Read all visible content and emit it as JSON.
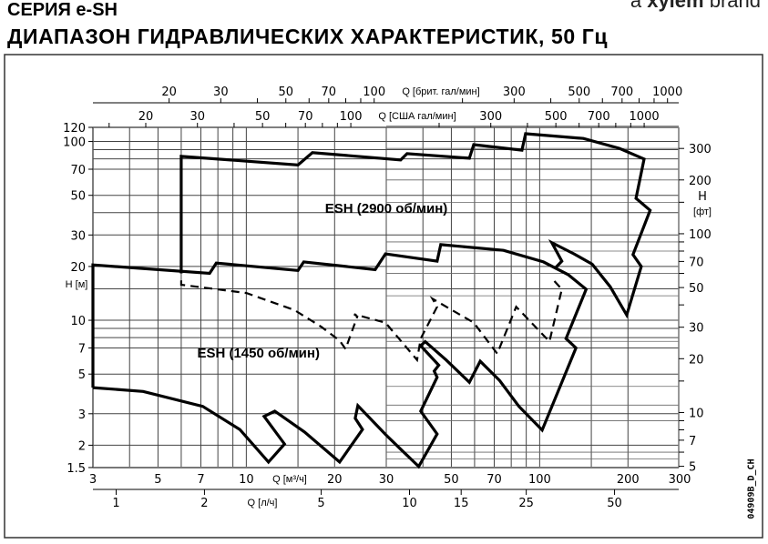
{
  "header": {
    "series_title": "СЕРИЯ e-SH",
    "title": "ДИАПАЗОН ГИДРАВЛИЧЕСКИХ ХАРАКТЕРИСТИК, 50 Гц",
    "brand_prefix": "a",
    "brand_name": "xylem",
    "brand_suffix": "brand"
  },
  "drawing_code": "04909B_D_CH",
  "chart_data": {
    "type": "line",
    "x_scale": "log",
    "y_scale": "log",
    "xlim": [
      3,
      300
    ],
    "ylim": [
      1.5,
      120
    ],
    "xlabel": "Q [м³/ч]",
    "ylabel": "H [м]",
    "grid": true,
    "x_ticks": [
      3,
      5,
      7,
      10,
      20,
      30,
      50,
      70,
      100,
      200,
      300
    ],
    "y_ticks": [
      1.5,
      2,
      3,
      5,
      7,
      10,
      20,
      30,
      50,
      70,
      100,
      120
    ],
    "x_grid": [
      4,
      5,
      6,
      7,
      8,
      9,
      10,
      15,
      20,
      30,
      40,
      50,
      60,
      70,
      80,
      90,
      100,
      150,
      200
    ],
    "y_grid": [
      2,
      3,
      5,
      7,
      8,
      9,
      10,
      15,
      20,
      30,
      40,
      50,
      70,
      80,
      90,
      100
    ],
    "secondary_axes": {
      "top_imp": {
        "label": "Q [брит. гал/мин]",
        "ticks": [
          20,
          30,
          50,
          70,
          100,
          300,
          500,
          700,
          1000
        ],
        "minor": [
          40,
          60,
          80,
          90,
          200,
          400,
          600,
          800,
          900
        ]
      },
      "top_us": {
        "label": "Q [США гал/мин]",
        "ticks": [
          20,
          30,
          50,
          70,
          100,
          300,
          500,
          700,
          1000
        ],
        "minor": [
          15,
          40,
          60,
          80,
          90,
          200,
          400,
          600,
          800,
          900
        ]
      },
      "bottom_ls": {
        "label": "Q [л/ч]",
        "ticks": [
          1,
          2,
          5,
          10,
          15,
          25,
          50
        ]
      },
      "right_ft": {
        "label_top": "H",
        "label_bottom": "[фт]",
        "ticks": [
          5,
          7,
          10,
          20,
          30,
          50,
          70,
          100,
          200,
          300
        ],
        "minor": [
          6,
          8,
          9,
          15,
          40,
          60,
          80,
          90,
          150,
          400
        ]
      }
    },
    "series": [
      {
        "style": "solid",
        "points": [
          [
            6,
            18.3
          ],
          [
            6,
            82.6
          ],
          [
            15,
            74
          ],
          [
            16.8,
            86.6
          ],
          [
            33.6,
            78.9
          ],
          [
            35.3,
            85.5
          ],
          [
            57.6,
            80.7
          ],
          [
            59.6,
            96.1
          ],
          [
            87,
            89.4
          ],
          [
            89.5,
            110.6
          ],
          [
            141,
            104
          ],
          [
            187,
            91.5
          ],
          [
            227,
            79.8
          ],
          [
            213,
            48.1
          ],
          [
            238,
            41.2
          ],
          [
            208,
            23.3
          ],
          [
            222,
            20
          ],
          [
            198,
            10.7
          ],
          [
            174,
            15.4
          ],
          [
            151,
            20.6
          ],
          [
            131,
            23.5
          ],
          [
            110,
            27.2
          ],
          [
            119,
            21.4
          ],
          [
            113,
            19.6
          ]
        ]
      },
      {
        "style": "solid",
        "points": [
          [
            3,
            4.2
          ],
          [
            3,
            20.4
          ],
          [
            7.5,
            18.3
          ],
          [
            7.9,
            20.9
          ],
          [
            15,
            19
          ],
          [
            15.7,
            21.2
          ],
          [
            27.5,
            19.2
          ],
          [
            29.8,
            23.5
          ],
          [
            44.7,
            21.4
          ],
          [
            46,
            26.5
          ],
          [
            75.3,
            24.6
          ],
          [
            103,
            21.2
          ],
          [
            125,
            18
          ],
          [
            144,
            14.9
          ],
          [
            123,
            7.9
          ],
          [
            133,
            7.0
          ],
          [
            102,
            2.43
          ],
          [
            85,
            3.3
          ],
          [
            73,
            4.6
          ],
          [
            62.7,
            5.9
          ],
          [
            57.6,
            4.5
          ],
          [
            48,
            6.0
          ],
          [
            40.7,
            7.6
          ],
          [
            39.3,
            7.2
          ],
          [
            45.3,
            5.6
          ],
          [
            43.7,
            5.2
          ],
          [
            44.7,
            4.8
          ],
          [
            39.3,
            3.1
          ],
          [
            44.7,
            2.31
          ],
          [
            38.7,
            1.52
          ],
          [
            33.6,
            1.9
          ],
          [
            29.8,
            2.3
          ],
          [
            24,
            3.33
          ],
          [
            23.5,
            2.83
          ],
          [
            24.9,
            2.45
          ],
          [
            20.8,
            1.61
          ],
          [
            15.8,
            2.37
          ],
          [
            12.5,
            3.1
          ],
          [
            11.5,
            2.9
          ],
          [
            13.5,
            2.03
          ],
          [
            11.9,
            1.61
          ],
          [
            9.5,
            2.45
          ],
          [
            7.1,
            3.3
          ],
          [
            4.45,
            4.0
          ],
          [
            3,
            4.2
          ]
        ]
      },
      {
        "style": "dashed",
        "points": [
          [
            6,
            16.7
          ],
          [
            6,
            15.8
          ],
          [
            10,
            14.2
          ],
          [
            14.6,
            11.4
          ],
          [
            18,
            9.2
          ],
          [
            20.8,
            7.7
          ],
          [
            21.8,
            6.9
          ],
          [
            23.9,
            10.5
          ],
          [
            23.3,
            10.8
          ],
          [
            29.8,
            9.7
          ],
          [
            38.2,
            6.0
          ],
          [
            39.3,
            7.9
          ],
          [
            44.7,
            11.9
          ],
          [
            43.1,
            13.2
          ],
          [
            59.6,
            9.7
          ],
          [
            71.7,
            6.5
          ],
          [
            83.2,
            11.9
          ],
          [
            108,
            7.6
          ],
          [
            119,
            14.9
          ],
          [
            111,
            16.9
          ]
        ]
      }
    ],
    "annotations": [
      {
        "text": "ESH (2900 об/мин)",
        "x": 30,
        "y": 40
      },
      {
        "text": "ESH (1450 об/мин)",
        "x": 11,
        "y": 6.2
      }
    ]
  }
}
